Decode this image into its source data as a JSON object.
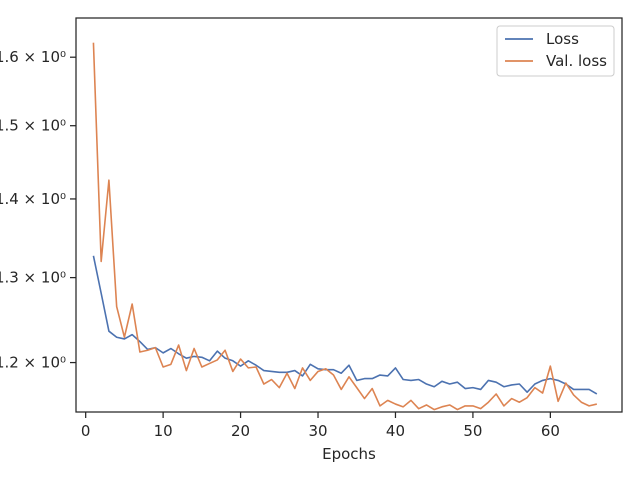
{
  "chart_data": {
    "type": "line",
    "title": "",
    "xlabel": "Epochs",
    "ylabel": "",
    "yscale": "log",
    "xlim": [
      -1.25,
      69.25
    ],
    "ylim": [
      1.1454,
      1.6602
    ],
    "grid": false,
    "legend_position": "top-right",
    "x_ticks": [
      0,
      10,
      20,
      30,
      40,
      50,
      60
    ],
    "y_ticks": [
      {
        "value": 1.2,
        "label": "1.2 × 10⁰"
      },
      {
        "value": 1.3,
        "label": "1.3 × 10⁰"
      },
      {
        "value": 1.4,
        "label": "1.4 × 10⁰"
      },
      {
        "value": 1.5,
        "label": "1.5 × 10⁰"
      },
      {
        "value": 1.6,
        "label": "1.6 × 10⁰"
      }
    ],
    "x": [
      1,
      2,
      3,
      4,
      5,
      6,
      7,
      8,
      9,
      10,
      11,
      12,
      13,
      14,
      15,
      16,
      17,
      18,
      19,
      20,
      21,
      22,
      23,
      24,
      25,
      26,
      27,
      28,
      29,
      30,
      31,
      32,
      33,
      34,
      35,
      36,
      37,
      38,
      39,
      40,
      41,
      42,
      43,
      44,
      45,
      46,
      47,
      48,
      49,
      50,
      51,
      52,
      53,
      54,
      55,
      56,
      57,
      58,
      59,
      60,
      61,
      62,
      63,
      64,
      65,
      66
    ],
    "series": [
      {
        "name": "Loss",
        "color": "#4c72b0",
        "values": [
          1.327,
          1.281,
          1.236,
          1.229,
          1.227,
          1.232,
          1.224,
          1.215,
          1.217,
          1.211,
          1.216,
          1.21,
          1.205,
          1.207,
          1.206,
          1.202,
          1.213,
          1.205,
          1.202,
          1.196,
          1.202,
          1.197,
          1.191,
          1.19,
          1.189,
          1.189,
          1.191,
          1.185,
          1.198,
          1.193,
          1.192,
          1.192,
          1.188,
          1.197,
          1.18,
          1.182,
          1.182,
          1.186,
          1.185,
          1.194,
          1.181,
          1.18,
          1.181,
          1.176,
          1.173,
          1.179,
          1.176,
          1.178,
          1.171,
          1.172,
          1.17,
          1.18,
          1.178,
          1.173,
          1.175,
          1.176,
          1.167,
          1.176,
          1.18,
          1.182,
          1.18,
          1.176,
          1.17,
          1.17,
          1.17,
          1.165
        ]
      },
      {
        "name": "Val. loss",
        "color": "#dd8452",
        "values": [
          1.622,
          1.32,
          1.425,
          1.265,
          1.229,
          1.268,
          1.212,
          1.214,
          1.217,
          1.195,
          1.198,
          1.22,
          1.191,
          1.216,
          1.195,
          1.199,
          1.203,
          1.214,
          1.19,
          1.204,
          1.194,
          1.195,
          1.176,
          1.181,
          1.172,
          1.188,
          1.171,
          1.194,
          1.18,
          1.19,
          1.193,
          1.186,
          1.17,
          1.184,
          1.172,
          1.16,
          1.171,
          1.152,
          1.158,
          1.154,
          1.151,
          1.158,
          1.149,
          1.153,
          1.148,
          1.151,
          1.153,
          1.148,
          1.152,
          1.152,
          1.149,
          1.156,
          1.165,
          1.152,
          1.16,
          1.156,
          1.161,
          1.172,
          1.166,
          1.196,
          1.157,
          1.177,
          1.164,
          1.156,
          1.152,
          1.154
        ]
      }
    ]
  }
}
